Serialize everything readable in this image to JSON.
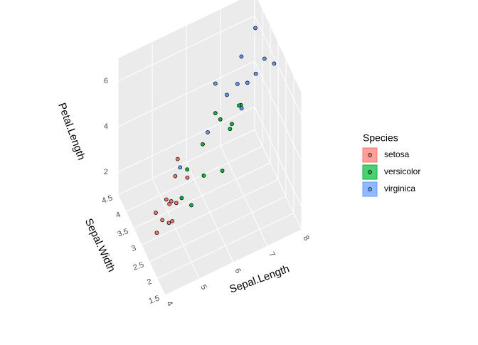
{
  "chart_data": {
    "type": "scatter3d",
    "x_label": "Sepal.Length",
    "y_label": "Sepal.Width",
    "z_label": "Petal.Length",
    "legend_title": "Species",
    "legend": "right",
    "xlim": [
      4,
      8
    ],
    "xticks": [
      4,
      5,
      6,
      7,
      8
    ],
    "ylim": [
      1.5,
      4.5
    ],
    "yticks": [
      1.5,
      2.0,
      2.5,
      3.0,
      3.5,
      4.0,
      4.5
    ],
    "zlim": [
      1,
      7
    ],
    "zticks": [
      2,
      4,
      6
    ],
    "grid": true,
    "series": [
      {
        "name": "setosa",
        "color": "#F8766D",
        "x": [
          5.1,
          4.9,
          4.7,
          5.0,
          5.4,
          4.6,
          5.0,
          4.4,
          5.8,
          5.7,
          5.2,
          4.8
        ],
        "y": [
          3.5,
          3.0,
          3.2,
          3.6,
          3.9,
          3.4,
          3.4,
          2.9,
          4.0,
          4.4,
          3.4,
          3.0
        ],
        "z": [
          1.4,
          1.4,
          1.3,
          1.4,
          1.7,
          1.4,
          1.5,
          1.4,
          1.2,
          1.5,
          1.4,
          1.4
        ]
      },
      {
        "name": "versicolor",
        "color": "#00BA38",
        "x": [
          7.0,
          6.4,
          6.9,
          5.5,
          6.5,
          5.7,
          6.3,
          4.9,
          6.6,
          5.2,
          5.0,
          6.0
        ],
        "y": [
          3.2,
          3.2,
          3.1,
          2.3,
          2.8,
          2.8,
          3.3,
          2.4,
          2.9,
          2.7,
          2.0,
          2.2
        ],
        "z": [
          4.7,
          4.5,
          4.9,
          4.0,
          4.6,
          4.5,
          4.7,
          3.3,
          4.6,
          3.9,
          3.5,
          4.0
        ]
      },
      {
        "name": "virginica",
        "color": "#619CFF",
        "x": [
          6.3,
          5.8,
          7.1,
          6.5,
          7.6,
          4.9,
          7.3,
          6.7,
          7.2,
          7.7,
          7.7,
          6.9
        ],
        "y": [
          3.3,
          2.7,
          3.0,
          3.0,
          3.0,
          2.5,
          2.9,
          2.5,
          3.6,
          3.8,
          2.6,
          3.2
        ],
        "z": [
          6.0,
          5.1,
          5.9,
          5.8,
          6.6,
          4.5,
          6.3,
          5.8,
          6.1,
          6.7,
          6.9,
          5.7
        ]
      }
    ]
  }
}
